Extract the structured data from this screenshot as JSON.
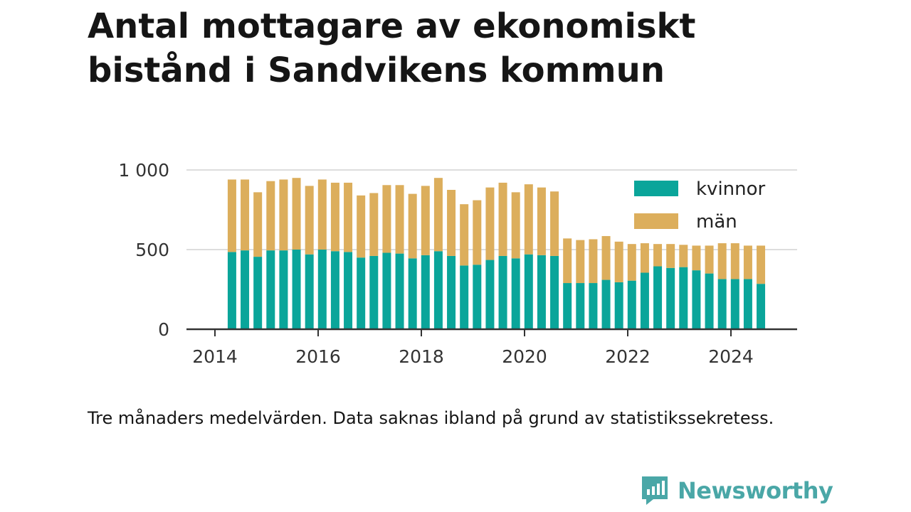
{
  "title": "Antal mottagare av ekonomiskt bistånd i Sandvikens kommun",
  "note": "Tre månaders medelvärden. Data saknas ibland på grund av statistikssekretess.",
  "brand": {
    "name": "Newsworthy",
    "icon": "newsworthy-logo-icon",
    "color": "#4aa7a7"
  },
  "colors": {
    "kvinnor": "#0aa59a",
    "man": "#dcae5c",
    "grid": "#dddddd",
    "axis": "#333333"
  },
  "chart_data": {
    "type": "bar",
    "stacked": true,
    "title": "Antal mottagare av ekonomiskt bistånd i Sandvikens kommun",
    "xlabel": "",
    "ylabel": "",
    "xlim": [
      2014,
      2025
    ],
    "ylim": [
      0,
      1000
    ],
    "y_ticks": [
      0,
      500,
      1000
    ],
    "y_tick_labels": [
      "0",
      "500",
      "1 000"
    ],
    "x_ticks": [
      2014,
      2016,
      2018,
      2020,
      2022,
      2024
    ],
    "x_tick_labels": [
      "2014",
      "2016",
      "2018",
      "2020",
      "2022",
      "2024"
    ],
    "grid": "horizontal",
    "legend_position": "top-right",
    "x": [
      2014.33,
      2014.58,
      2014.83,
      2015.08,
      2015.33,
      2015.58,
      2015.83,
      2016.08,
      2016.33,
      2016.58,
      2016.83,
      2017.08,
      2017.33,
      2017.58,
      2017.83,
      2018.08,
      2018.33,
      2018.58,
      2018.83,
      2019.08,
      2019.33,
      2019.58,
      2019.83,
      2020.08,
      2020.33,
      2020.58,
      2020.83,
      2021.08,
      2021.33,
      2021.58,
      2021.83,
      2022.08,
      2022.33,
      2022.58,
      2022.83,
      2023.08,
      2023.33,
      2023.58,
      2023.83,
      2024.08,
      2024.33,
      2024.58
    ],
    "series": [
      {
        "name": "kvinnor",
        "color": "#0aa59a",
        "values": [
          485,
          495,
          455,
          495,
          495,
          500,
          470,
          500,
          490,
          485,
          450,
          460,
          480,
          475,
          445,
          465,
          490,
          460,
          400,
          405,
          435,
          460,
          445,
          470,
          465,
          460,
          290,
          290,
          290,
          310,
          295,
          305,
          355,
          395,
          385,
          390,
          370,
          350,
          315,
          315,
          315,
          285
        ]
      },
      {
        "name": "män",
        "color": "#dcae5c",
        "values": [
          455,
          445,
          405,
          435,
          445,
          450,
          430,
          440,
          430,
          435,
          390,
          395,
          425,
          430,
          405,
          435,
          460,
          415,
          385,
          405,
          455,
          460,
          415,
          440,
          425,
          405,
          280,
          270,
          275,
          275,
          255,
          230,
          185,
          140,
          150,
          140,
          155,
          175,
          225,
          225,
          210,
          240
        ]
      }
    ]
  }
}
